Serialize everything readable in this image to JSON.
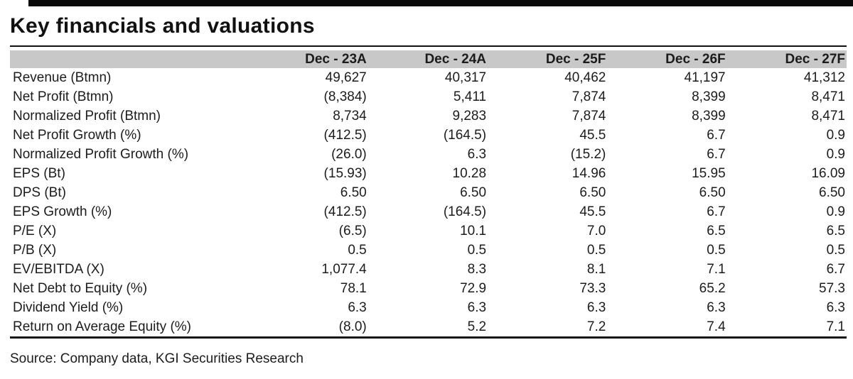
{
  "page": {
    "title": "Key financials and valuations",
    "source": "Source: Company data, KGI Securities Research"
  },
  "colors": {
    "header_bg": "#c8c8c8",
    "rule": "#111111",
    "top_bar": "#0a0a0a",
    "text": "#1c1c1c"
  },
  "table": {
    "label_header": "",
    "columns": [
      "Dec - 23A",
      "Dec - 24A",
      "Dec - 25F",
      "Dec - 26F",
      "Dec - 27F"
    ],
    "rows": [
      {
        "label": "Revenue (Btmn)",
        "values": [
          "49,627",
          "40,317",
          "40,462",
          "41,197",
          "41,312"
        ]
      },
      {
        "label": "Net Profit (Btmn)",
        "values": [
          "(8,384)",
          "5,411",
          "7,874",
          "8,399",
          "8,471"
        ]
      },
      {
        "label": "Normalized Profit (Btmn)",
        "values": [
          "8,734",
          "9,283",
          "7,874",
          "8,399",
          "8,471"
        ]
      },
      {
        "label": "Net Profit Growth (%)",
        "values": [
          "(412.5)",
          "(164.5)",
          "45.5",
          "6.7",
          "0.9"
        ]
      },
      {
        "label": "Normalized Profit Growth (%)",
        "values": [
          "(26.0)",
          "6.3",
          "(15.2)",
          "6.7",
          "0.9"
        ]
      },
      {
        "label": "EPS (Bt)",
        "values": [
          "(15.93)",
          "10.28",
          "14.96",
          "15.95",
          "16.09"
        ]
      },
      {
        "label": "DPS (Bt)",
        "values": [
          "6.50",
          "6.50",
          "6.50",
          "6.50",
          "6.50"
        ]
      },
      {
        "label": "EPS Growth (%)",
        "values": [
          "(412.5)",
          "(164.5)",
          "45.5",
          "6.7",
          "0.9"
        ]
      },
      {
        "label": "P/E (X)",
        "values": [
          "(6.5)",
          "10.1",
          "7.0",
          "6.5",
          "6.5"
        ]
      },
      {
        "label": "P/B (X)",
        "values": [
          "0.5",
          "0.5",
          "0.5",
          "0.5",
          "0.5"
        ]
      },
      {
        "label": "EV/EBITDA (X)",
        "values": [
          "1,077.4",
          "8.3",
          "8.1",
          "7.1",
          "6.7"
        ]
      },
      {
        "label": "Net Debt to Equity (%)",
        "values": [
          "78.1",
          "72.9",
          "73.3",
          "65.2",
          "57.3"
        ]
      },
      {
        "label": "Dividend Yield (%)",
        "values": [
          "6.3",
          "6.3",
          "6.3",
          "6.3",
          "6.3"
        ]
      },
      {
        "label": "Return on Average Equity (%)",
        "values": [
          "(8.0)",
          "5.2",
          "7.2",
          "7.4",
          "7.1"
        ]
      }
    ]
  }
}
